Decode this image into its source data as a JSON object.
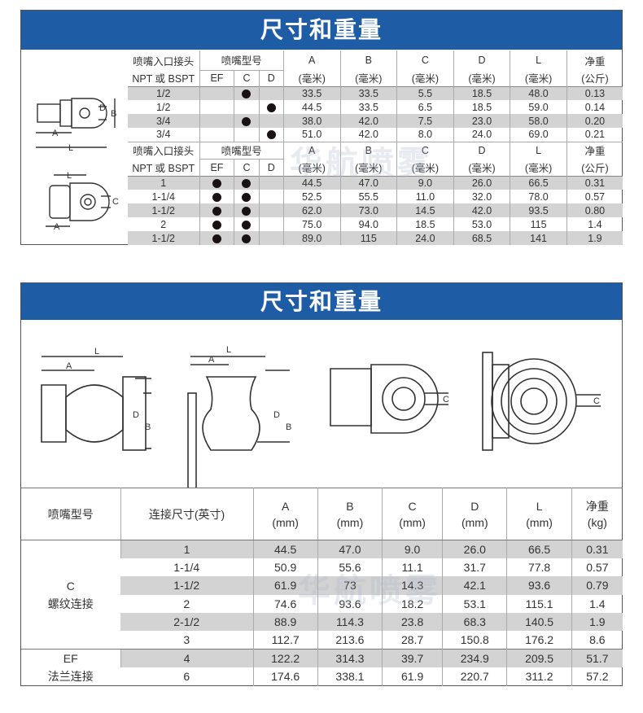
{
  "top": {
    "title": "尺寸和重量",
    "header": {
      "inlet1": "喷嘴入口接头",
      "inlet2": "NPT 或 BSPT",
      "model": "喷嘴型号",
      "ef": "EF",
      "c": "C",
      "d": "D",
      "cols": [
        {
          "l": "A",
          "u": "(毫米)"
        },
        {
          "l": "B",
          "u": "(毫米)"
        },
        {
          "l": "C",
          "u": "(毫米)"
        },
        {
          "l": "D",
          "u": "(毫米)"
        },
        {
          "l": "L",
          "u": "(毫米)"
        },
        {
          "l": "净重",
          "u": "(公斤)"
        }
      ]
    },
    "group1": [
      {
        "size": "1/2",
        "ef": false,
        "c": true,
        "d": false,
        "v": [
          "33.5",
          "33.5",
          "5.5",
          "18.5",
          "48.0",
          "0.13"
        ]
      },
      {
        "size": "1/2",
        "ef": false,
        "c": false,
        "d": true,
        "v": [
          "44.5",
          "33.5",
          "6.5",
          "18.5",
          "59.0",
          "0.14"
        ]
      },
      {
        "size": "3/4",
        "ef": false,
        "c": true,
        "d": false,
        "v": [
          "38.0",
          "42.0",
          "7.5",
          "23.0",
          "58.0",
          "0.20"
        ]
      },
      {
        "size": "3/4",
        "ef": false,
        "c": false,
        "d": true,
        "v": [
          "51.0",
          "42.0",
          "8.0",
          "24.0",
          "69.0",
          "0.21"
        ]
      }
    ],
    "group2": [
      {
        "size": "1",
        "ef": true,
        "c": true,
        "d": false,
        "v": [
          "44.5",
          "47.0",
          "9.0",
          "26.0",
          "66.5",
          "0.31"
        ]
      },
      {
        "size": "1-1/4",
        "ef": true,
        "c": true,
        "d": false,
        "v": [
          "52.5",
          "55.5",
          "11.0",
          "32.0",
          "78.0",
          "0.57"
        ]
      },
      {
        "size": "1-1/2",
        "ef": true,
        "c": true,
        "d": false,
        "v": [
          "62.0",
          "73.0",
          "14.5",
          "42.0",
          "93.5",
          "0.80"
        ]
      },
      {
        "size": "2",
        "ef": true,
        "c": true,
        "d": false,
        "v": [
          "75.0",
          "94.0",
          "18.5",
          "53.0",
          "115",
          "1.4"
        ]
      },
      {
        "size": "1-1/2",
        "ef": true,
        "c": true,
        "d": false,
        "v": [
          "89.0",
          "115",
          "24.0",
          "68.5",
          "141",
          "1.9"
        ]
      }
    ],
    "dim_labels": {
      "a": "A",
      "b": "B",
      "c": "C",
      "d": "D",
      "l": "L"
    }
  },
  "bottom": {
    "title": "尺寸和重量",
    "header": {
      "model": "喷嘴型号",
      "size": "连接尺寸(英寸)",
      "cols": [
        {
          "l": "A",
          "u": "(mm)"
        },
        {
          "l": "B",
          "u": "(mm)"
        },
        {
          "l": "C",
          "u": "(mm)"
        },
        {
          "l": "D",
          "u": "(mm)"
        },
        {
          "l": "L",
          "u": "(mm)"
        },
        {
          "l": "净重",
          "u": "(kg)"
        }
      ]
    },
    "groups": [
      {
        "code": "C",
        "name": "螺纹连接",
        "rows": [
          {
            "size": "1",
            "v": [
              "44.5",
              "47.0",
              "9.0",
              "26.0",
              "66.5",
              "0.31"
            ]
          },
          {
            "size": "1-1/4",
            "v": [
              "50.9",
              "55.6",
              "11.1",
              "31.7",
              "77.8",
              "0.57"
            ]
          },
          {
            "size": "1-1/2",
            "v": [
              "61.9",
              "73",
              "14.3",
              "42.1",
              "93.6",
              "0.79"
            ]
          },
          {
            "size": "2",
            "v": [
              "74.6",
              "93.6",
              "18.2",
              "53.1",
              "115.1",
              "1.4"
            ]
          },
          {
            "size": "2-1/2",
            "v": [
              "88.9",
              "114.3",
              "23.8",
              "68.3",
              "140.5",
              "1.9"
            ]
          },
          {
            "size": "3",
            "v": [
              "112.7",
              "213.6",
              "28.7",
              "150.8",
              "176.2",
              "8.6"
            ]
          }
        ]
      },
      {
        "code": "EF",
        "name": "法兰连接",
        "rows": [
          {
            "size": "4",
            "v": [
              "122.2",
              "314.3",
              "39.7",
              "234.9",
              "209.5",
              "51.7"
            ]
          },
          {
            "size": "6",
            "v": [
              "174.6",
              "338.1",
              "61.9",
              "220.7",
              "311.2",
              "57.2"
            ]
          }
        ]
      }
    ]
  },
  "watermark": "华航喷雾",
  "colors": {
    "header_bar": "#1f5ca6",
    "row_shade": "#d3d3d3"
  }
}
